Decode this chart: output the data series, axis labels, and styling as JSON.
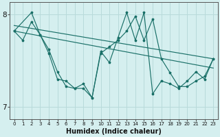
{
  "xlabel": "Humidex (Indice chaleur)",
  "background_color": "#d5efef",
  "grid_color": "#b8dada",
  "line_color": "#1a7068",
  "xlim": [
    -0.5,
    23.5
  ],
  "ylim": [
    6.87,
    8.13
  ],
  "yticks": [
    7,
    8
  ],
  "xticks": [
    0,
    1,
    2,
    3,
    4,
    5,
    6,
    7,
    8,
    9,
    10,
    11,
    12,
    13,
    14,
    15,
    16,
    17,
    18,
    19,
    20,
    21,
    22,
    23
  ],
  "series1_x": [
    0,
    1,
    2,
    3,
    4,
    5,
    6,
    7,
    8,
    9,
    10,
    11,
    12,
    13,
    14,
    15,
    16,
    17,
    18,
    19,
    20,
    21,
    22,
    23
  ],
  "series1_y": [
    7.82,
    7.72,
    7.92,
    7.78,
    7.62,
    7.38,
    7.22,
    7.2,
    7.2,
    7.1,
    7.58,
    7.65,
    7.72,
    7.82,
    7.98,
    7.72,
    7.95,
    7.52,
    7.37,
    7.22,
    7.22,
    7.28,
    7.33,
    7.52
  ],
  "series2_x": [
    0,
    2,
    3,
    4,
    5,
    6,
    7,
    8,
    9,
    10,
    11,
    12,
    13,
    14,
    15,
    16,
    17,
    18,
    19,
    20,
    21,
    22,
    23
  ],
  "series2_y": [
    7.82,
    8.02,
    7.78,
    7.58,
    7.3,
    7.28,
    7.2,
    7.25,
    7.1,
    7.6,
    7.48,
    7.75,
    8.02,
    7.72,
    8.02,
    7.14,
    7.28,
    7.25,
    7.2,
    7.28,
    7.38,
    7.3,
    7.52
  ],
  "trend1_x": [
    0,
    23
  ],
  "trend1_y": [
    7.88,
    7.52
  ],
  "trend2_x": [
    0,
    23
  ],
  "trend2_y": [
    7.82,
    7.42
  ]
}
